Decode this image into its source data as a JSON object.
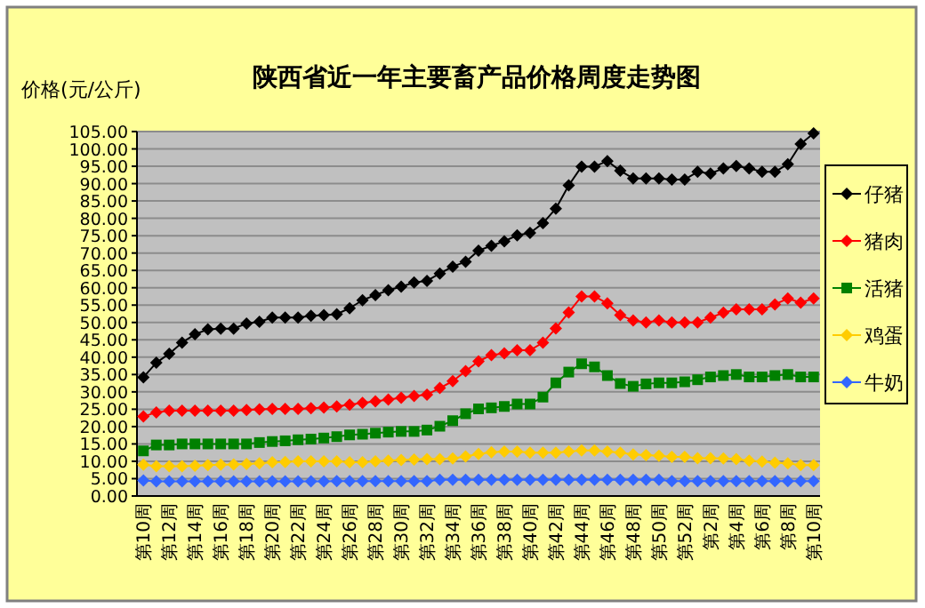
{
  "chart_data": {
    "type": "line",
    "title": "陕西省近一年主要畜产品价格周度走势图",
    "ylabel": "价格(元/公斤)",
    "categories": [
      "第10周",
      null,
      "第12周",
      null,
      "第14周",
      null,
      "第16周",
      null,
      "第18周",
      null,
      "第20周",
      null,
      "第22周",
      null,
      "第24周",
      null,
      "第26周",
      null,
      "第28周",
      null,
      "第30周",
      null,
      "第32周",
      null,
      "第34周",
      null,
      "第36周",
      null,
      "第38周",
      null,
      "第40周",
      null,
      "第42周",
      null,
      "第44周",
      null,
      "第46周",
      null,
      "第48周",
      null,
      "第50周",
      null,
      "第52周",
      null,
      "第2周",
      null,
      "第4周",
      null,
      "第6周",
      null,
      "第8周",
      null,
      "第10周"
    ],
    "ylim": [
      0,
      105
    ],
    "yticks": [
      {
        "value": 0,
        "label": "0.00"
      },
      {
        "value": 5,
        "label": "5.00"
      },
      {
        "value": 10,
        "label": "10.00"
      },
      {
        "value": 15,
        "label": "15.00"
      },
      {
        "value": 20,
        "label": "20.00"
      },
      {
        "value": 25,
        "label": "25.00"
      },
      {
        "value": 30,
        "label": "30.00"
      },
      {
        "value": 35,
        "label": "35.00"
      },
      {
        "value": 40,
        "label": "40.00"
      },
      {
        "value": 45,
        "label": "45.00"
      },
      {
        "value": 50,
        "label": "50.00"
      },
      {
        "value": 55,
        "label": "55.00"
      },
      {
        "value": 60,
        "label": "60.00"
      },
      {
        "value": 65,
        "label": "65.00"
      },
      {
        "value": 70,
        "label": "70.00"
      },
      {
        "value": 75,
        "label": "75.00"
      },
      {
        "value": 80,
        "label": "80.00"
      },
      {
        "value": 85,
        "label": "85.00"
      },
      {
        "value": 90,
        "label": "90.00"
      },
      {
        "value": 95,
        "label": "95.00"
      },
      {
        "value": 100,
        "label": "100.00"
      },
      {
        "value": 105,
        "label": "105.00"
      }
    ],
    "grid": "y",
    "legend": "right",
    "series": [
      {
        "name": "仔猪",
        "color": "#000000",
        "marker": "diamond",
        "values": [
          34.2,
          38.4,
          41.0,
          44.2,
          46.6,
          48.0,
          48.2,
          48.2,
          49.7,
          50.2,
          51.4,
          51.4,
          51.4,
          51.9,
          52.1,
          52.4,
          54.1,
          56.4,
          57.9,
          59.3,
          60.3,
          61.5,
          62.0,
          64.1,
          66.1,
          67.5,
          70.7,
          72.1,
          73.4,
          75.1,
          75.8,
          78.6,
          82.8,
          89.5,
          94.9,
          94.9,
          96.5,
          93.7,
          91.5,
          91.5,
          91.5,
          91.2,
          91.2,
          93.4,
          92.9,
          94.4,
          95.1,
          94.4,
          93.4,
          93.4,
          95.6,
          101.4,
          104.5
        ]
      },
      {
        "name": "猪肉",
        "color": "#ff0000",
        "marker": "diamond",
        "values": [
          22.9,
          24.1,
          24.6,
          24.6,
          24.6,
          24.6,
          24.6,
          24.6,
          24.8,
          25.0,
          25.1,
          25.1,
          25.1,
          25.3,
          25.5,
          25.8,
          26.3,
          26.8,
          27.3,
          27.8,
          28.3,
          28.8,
          29.2,
          31.1,
          33.1,
          36.0,
          38.8,
          40.6,
          41.1,
          42.0,
          42.0,
          44.2,
          48.3,
          52.9,
          57.5,
          57.5,
          55.5,
          52.1,
          50.6,
          50.0,
          50.6,
          50.0,
          50.0,
          50.0,
          51.4,
          52.8,
          53.8,
          53.8,
          53.8,
          55.2,
          56.9,
          55.7,
          56.9
        ]
      },
      {
        "name": "活猪",
        "color": "#008000",
        "marker": "square",
        "values": [
          13.0,
          14.7,
          14.7,
          15.0,
          15.0,
          15.0,
          15.0,
          15.0,
          15.0,
          15.4,
          15.7,
          15.9,
          16.2,
          16.4,
          16.7,
          17.1,
          17.6,
          17.8,
          18.1,
          18.4,
          18.6,
          18.6,
          19.0,
          20.1,
          21.7,
          23.7,
          25.1,
          25.4,
          25.8,
          26.5,
          26.5,
          28.5,
          32.6,
          35.7,
          38.1,
          37.2,
          34.7,
          32.4,
          31.6,
          32.3,
          32.6,
          32.6,
          32.9,
          33.5,
          34.3,
          34.7,
          35.0,
          34.3,
          34.3,
          34.7,
          35.0,
          34.3,
          34.3
        ]
      },
      {
        "name": "鸡蛋",
        "color": "#ffcc00",
        "marker": "diamond",
        "values": [
          9.0,
          8.6,
          8.6,
          8.6,
          8.7,
          8.9,
          9.0,
          9.1,
          9.2,
          9.4,
          9.7,
          9.8,
          10.0,
          10.0,
          10.0,
          10.0,
          9.7,
          9.7,
          10.0,
          10.2,
          10.4,
          10.5,
          10.6,
          10.6,
          10.8,
          11.4,
          12.1,
          12.6,
          12.8,
          12.8,
          12.5,
          12.5,
          12.5,
          12.8,
          13.1,
          13.1,
          12.8,
          12.5,
          12.0,
          11.8,
          11.6,
          11.3,
          11.3,
          10.9,
          10.9,
          10.8,
          10.6,
          10.2,
          9.9,
          9.6,
          9.4,
          8.9,
          8.9
        ]
      },
      {
        "name": "牛奶",
        "color": "#3366ff",
        "marker": "diamond",
        "values": [
          4.5,
          4.2,
          4.2,
          4.2,
          4.2,
          4.2,
          4.2,
          4.2,
          4.2,
          4.2,
          4.2,
          4.2,
          4.2,
          4.2,
          4.2,
          4.3,
          4.3,
          4.3,
          4.3,
          4.3,
          4.3,
          4.3,
          4.3,
          4.7,
          4.7,
          4.7,
          4.7,
          4.7,
          4.7,
          4.7,
          4.7,
          4.7,
          4.7,
          4.7,
          4.7,
          4.7,
          4.7,
          4.7,
          4.7,
          4.7,
          4.7,
          4.3,
          4.3,
          4.3,
          4.3,
          4.3,
          4.3,
          4.3,
          4.3,
          4.3,
          4.3,
          4.3,
          4.3
        ]
      }
    ]
  }
}
